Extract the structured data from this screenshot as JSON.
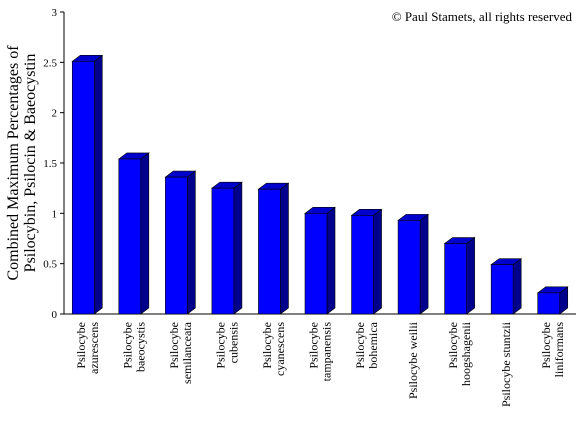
{
  "chart_data": {
    "type": "bar3d",
    "annotation": "© Paul Stamets, all rights reserved",
    "y_label": [
      "Combined Maximum Percentages of",
      "Psilocybin, Psilocin & Baeocystin"
    ],
    "categories": [
      [
        "Psilocybe",
        "azurescens"
      ],
      [
        "Psilocybe",
        "baeocystis"
      ],
      [
        "Psilocybe",
        "semilanceata"
      ],
      [
        "Psilocybe",
        "cubensis"
      ],
      [
        "Psilocybe",
        "cyanescens"
      ],
      [
        "Psilocybe",
        "tampanensis"
      ],
      [
        "Psilocybe",
        "bohemica"
      ],
      [
        "Psilocybe weilii"
      ],
      [
        "Psilocybe",
        "hoogshagenii"
      ],
      [
        "Psilocybe stuntzii"
      ],
      [
        "Psilocybe",
        "liniformans"
      ]
    ],
    "values": [
      2.51,
      1.54,
      1.36,
      1.25,
      1.24,
      1.0,
      0.98,
      0.93,
      0.7,
      0.49,
      0.21
    ],
    "color": "#0000ff",
    "ylim": [
      0,
      3
    ],
    "yticks": [
      0,
      0.5,
      1,
      1.5,
      2,
      2.5,
      3
    ]
  }
}
